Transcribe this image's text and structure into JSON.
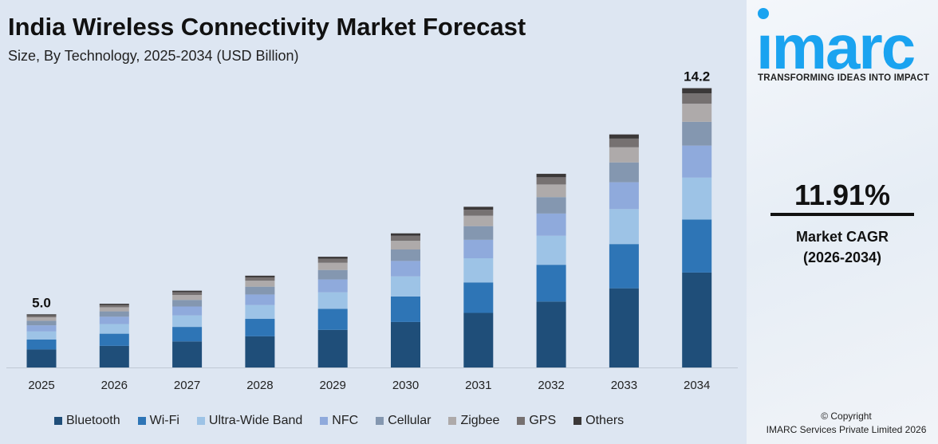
{
  "chart_data": {
    "type": "bar",
    "stacked": true,
    "title": "India Wireless Connectivity Market Forecast",
    "subtitle": "Size, By Technology, 2025-2034 (USD Billion)",
    "categories": [
      "2025",
      "2026",
      "2027",
      "2028",
      "2029",
      "2030",
      "2031",
      "2032",
      "2033",
      "2034"
    ],
    "series": [
      {
        "name": "Bluetooth",
        "color": "#1f4e79",
        "values": [
          1.7,
          1.85,
          2.03,
          2.24,
          2.5,
          2.82,
          3.19,
          3.65,
          4.19,
          4.83
        ]
      },
      {
        "name": "Wi-Fi",
        "color": "#2e75b6",
        "values": [
          0.95,
          1.04,
          1.13,
          1.25,
          1.4,
          1.58,
          1.78,
          2.04,
          2.34,
          2.7
        ]
      },
      {
        "name": "Ultra-Wide Band",
        "color": "#9dc3e6",
        "values": [
          0.75,
          0.82,
          0.9,
          0.99,
          1.1,
          1.25,
          1.41,
          1.61,
          1.85,
          2.13
        ]
      },
      {
        "name": "NFC",
        "color": "#8faadc",
        "values": [
          0.58,
          0.63,
          0.69,
          0.76,
          0.85,
          0.95,
          1.08,
          1.23,
          1.42,
          1.63
        ]
      },
      {
        "name": "Cellular",
        "color": "#8497b0",
        "values": [
          0.43,
          0.46,
          0.51,
          0.56,
          0.63,
          0.71,
          0.8,
          0.91,
          1.05,
          1.21
        ]
      },
      {
        "name": "Zigbee",
        "color": "#aeaaaa",
        "values": [
          0.33,
          0.35,
          0.39,
          0.43,
          0.48,
          0.54,
          0.61,
          0.7,
          0.8,
          0.92
        ]
      },
      {
        "name": "GPS",
        "color": "#767171",
        "values": [
          0.19,
          0.2,
          0.22,
          0.24,
          0.27,
          0.31,
          0.35,
          0.4,
          0.46,
          0.53
        ]
      },
      {
        "name": "Others",
        "color": "#3b3838",
        "values": [
          0.09,
          0.1,
          0.11,
          0.12,
          0.13,
          0.15,
          0.17,
          0.19,
          0.22,
          0.26
        ]
      }
    ],
    "data_labels": [
      {
        "category": "2025",
        "text": "5.0"
      },
      {
        "category": "2034",
        "text": "14.2"
      }
    ],
    "legend_position": "bottom",
    "grid": false
  },
  "brand": {
    "logo_text": "imarc",
    "tagline": "TRANSFORMING IDEAS INTO IMPACT",
    "logo_color": "#1aa3f0"
  },
  "cagr": {
    "value": "11.91%",
    "label": "Market CAGR",
    "period": "(2026-2034)"
  },
  "copyright": {
    "line1": "© Copyright",
    "line2": "IMARC Services Private Limited 2026"
  }
}
